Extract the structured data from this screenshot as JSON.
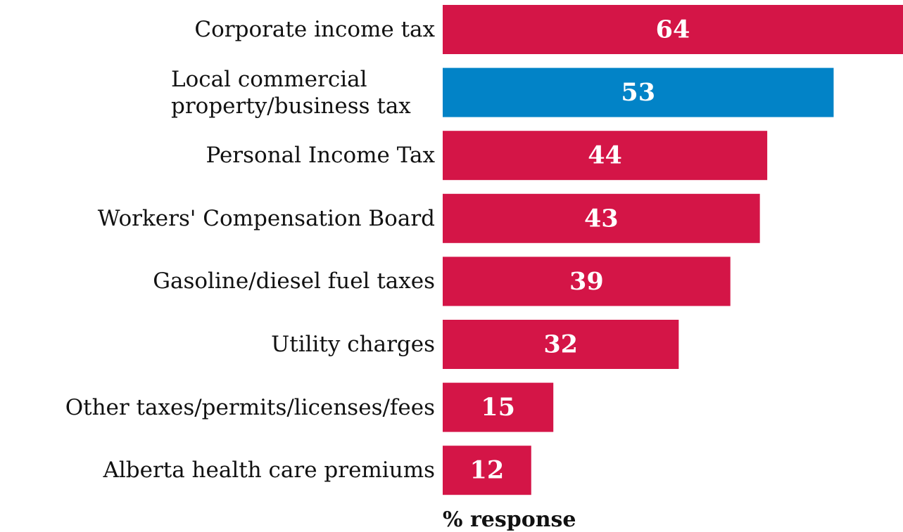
{
  "chart_data": {
    "type": "bar",
    "orientation": "horizontal",
    "categories": [
      "Corporate income tax",
      "Local commercial property/business tax",
      "Personal Income Tax",
      "Workers' Compensation Board",
      "Gasoline/diesel fuel taxes",
      "Utility charges",
      "Other taxes/permits/licenses/fees",
      "Alberta health care premiums"
    ],
    "values": [
      64,
      53,
      44,
      43,
      39,
      32,
      15,
      12
    ],
    "colors": [
      "#d41547",
      "#0283c7",
      "#d41547",
      "#d41547",
      "#d41547",
      "#d41547",
      "#d41547",
      "#d41547"
    ],
    "x_label": "% response"
  }
}
